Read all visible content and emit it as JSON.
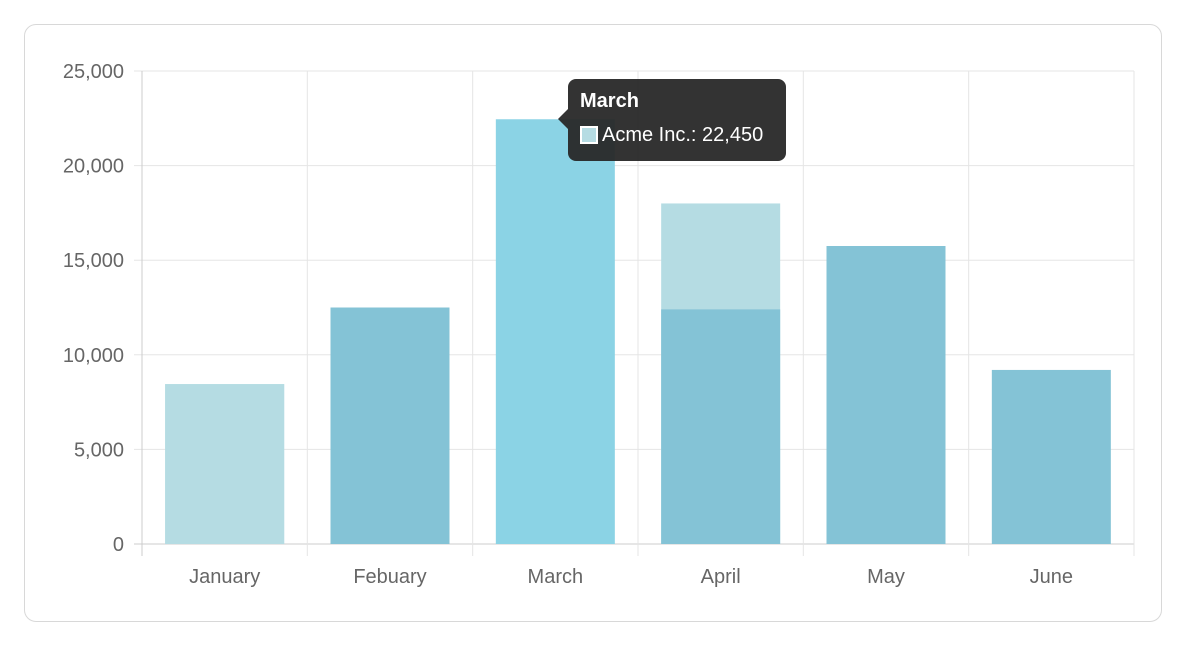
{
  "chart_data": {
    "type": "bar",
    "categories": [
      "January",
      "Febuary",
      "March",
      "April",
      "May",
      "June"
    ],
    "series": [
      {
        "values": [
          8450,
          12500,
          22450,
          12400,
          15750,
          9200
        ]
      },
      {
        "values": [
          8450,
          0,
          0,
          18000,
          0,
          0
        ]
      }
    ],
    "bar_colors": [
      "#b5dce3",
      "#84c3d6",
      "#8bd3e5",
      "#84c3d6",
      "#84c3d6",
      "#84c3d6"
    ],
    "overlay_color": "#b5dce3",
    "ylim": [
      0,
      25000
    ],
    "yticks": [
      0,
      5000,
      10000,
      15000,
      20000,
      25000
    ],
    "ytick_labels": [
      "0",
      "5,000",
      "10,000",
      "15,000",
      "20,000",
      "25,000"
    ],
    "grid": true,
    "xlabel": "",
    "ylabel": ""
  },
  "tooltip": {
    "title": "March",
    "label": "Acme Inc.: 22,450",
    "swatch_color": "#b5dce3"
  }
}
